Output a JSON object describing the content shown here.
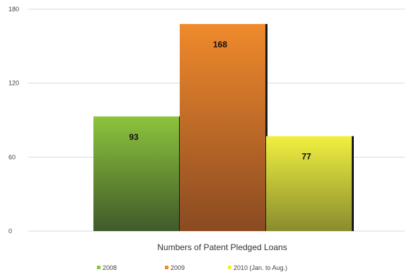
{
  "chart_data": {
    "type": "bar",
    "title": "",
    "xlabel": "Numbers of Patent Pledged Loans",
    "ylabel": "",
    "ylim": [
      0,
      180
    ],
    "yticks": [
      0,
      60,
      120,
      180
    ],
    "grid": true,
    "legend_position": "bottom",
    "series": [
      {
        "name": "2008",
        "values": [
          93
        ],
        "color_top": "#8cc43c",
        "color_bottom": "#3f5a2a"
      },
      {
        "name": "2009",
        "values": [
          168
        ],
        "color_top": "#f08a2c",
        "color_bottom": "#8a4a22"
      },
      {
        "name": "2010 (Jan. to Aug.)",
        "values": [
          77
        ],
        "color_top": "#f0f040",
        "color_bottom": "#8a8c2e"
      }
    ]
  }
}
